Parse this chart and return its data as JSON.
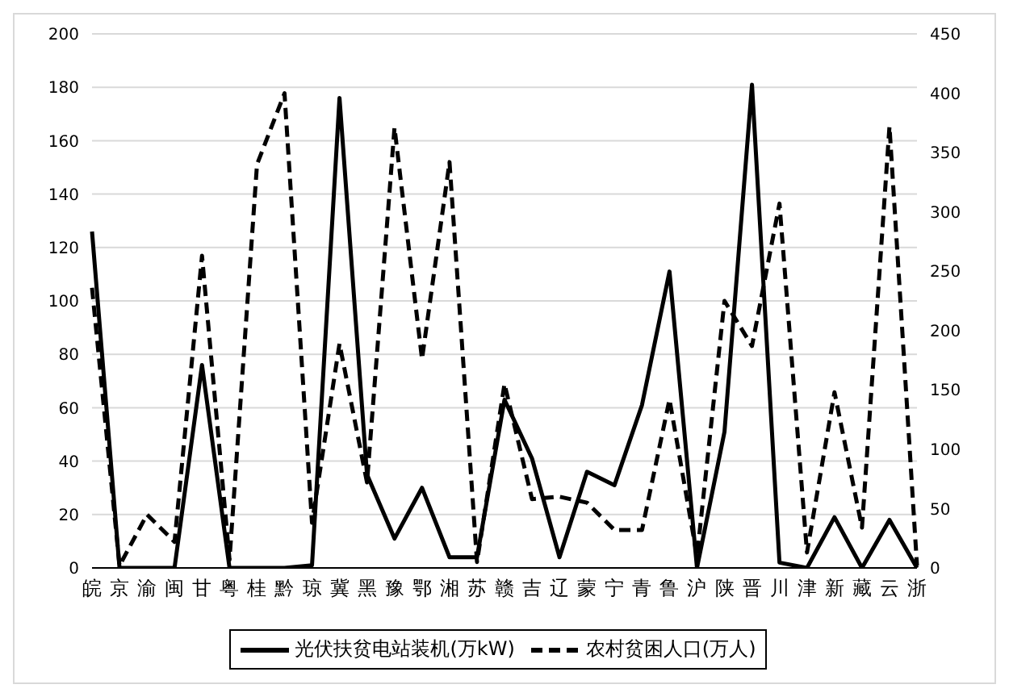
{
  "chart_data": {
    "type": "line",
    "categories": [
      "皖",
      "京",
      "渝",
      "闽",
      "甘",
      "粤",
      "桂",
      "黔",
      "琼",
      "冀",
      "黑",
      "豫",
      "鄂",
      "湘",
      "苏",
      "赣",
      "吉",
      "辽",
      "蒙",
      "宁",
      "青",
      "鲁",
      "沪",
      "陕",
      "晋",
      "川",
      "津",
      "新",
      "藏",
      "云",
      "浙"
    ],
    "series": [
      {
        "name": "光伏扶贫电站装机(万kW)",
        "color": "#000000",
        "line_style": "solid",
        "values": [
          126,
          0,
          0,
          0,
          76,
          0,
          0,
          0,
          1,
          176,
          35,
          11,
          30,
          4,
          4,
          63,
          41,
          4,
          36,
          31,
          61,
          111,
          0,
          51,
          181,
          2,
          0,
          19,
          0,
          18,
          0
        ]
      },
      {
        "name": "农村贫困人口(万人)",
        "color": "#000000",
        "line_style": "dashed",
        "axis": "y2",
        "values": [
          236,
          2,
          45,
          22,
          263,
          7,
          340,
          400,
          38,
          189,
          72,
          371,
          176,
          342,
          5,
          155,
          58,
          60,
          55,
          32,
          32,
          142,
          10,
          225,
          187,
          307,
          13,
          148,
          34,
          372,
          2
        ]
      }
    ],
    "ylim": [
      0,
      200
    ],
    "yticks": [
      0,
      20,
      40,
      60,
      80,
      100,
      120,
      140,
      160,
      180,
      200
    ],
    "y2lim": [
      0,
      450
    ],
    "y2ticks": [
      0,
      50,
      100,
      150,
      200,
      250,
      300,
      350,
      400,
      450
    ],
    "grid": "y",
    "legend": "bottom",
    "marker": "none"
  }
}
